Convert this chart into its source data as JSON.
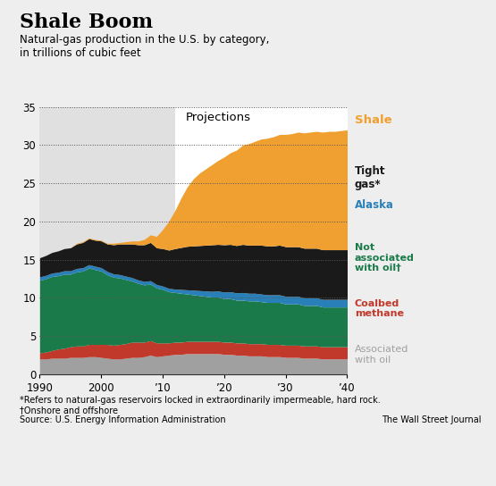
{
  "title": "Shale Boom",
  "subtitle": "Natural-gas production in the U.S. by category,\nin trillions of cubic feet",
  "footnote1": "*Refers to natural-gas reservoirs locked in extraordinarily impermeable, hard rock.",
  "footnote2": "†Onshore and offshore",
  "source": "Source: U.S. Energy Information Administration",
  "wsj": "The Wall Street Journal",
  "projection_start_year": 2012,
  "years": [
    1990,
    1991,
    1992,
    1993,
    1994,
    1995,
    1996,
    1997,
    1998,
    1999,
    2000,
    2001,
    2002,
    2003,
    2004,
    2005,
    2006,
    2007,
    2008,
    2009,
    2010,
    2011,
    2012,
    2013,
    2014,
    2015,
    2016,
    2017,
    2018,
    2019,
    2020,
    2021,
    2022,
    2023,
    2024,
    2025,
    2026,
    2027,
    2028,
    2029,
    2030,
    2031,
    2032,
    2033,
    2034,
    2035,
    2036,
    2037,
    2038,
    2039,
    2040
  ],
  "associated_with_oil": [
    2.0,
    2.0,
    2.1,
    2.1,
    2.1,
    2.2,
    2.2,
    2.2,
    2.3,
    2.3,
    2.2,
    2.1,
    2.0,
    2.0,
    2.1,
    2.2,
    2.2,
    2.3,
    2.5,
    2.3,
    2.4,
    2.5,
    2.6,
    2.6,
    2.7,
    2.7,
    2.7,
    2.7,
    2.7,
    2.7,
    2.6,
    2.6,
    2.5,
    2.5,
    2.4,
    2.4,
    2.4,
    2.3,
    2.3,
    2.3,
    2.2,
    2.2,
    2.2,
    2.1,
    2.1,
    2.1,
    2.0,
    2.0,
    2.0,
    2.0,
    2.0
  ],
  "coalbed_methane": [
    0.8,
    0.9,
    1.0,
    1.2,
    1.3,
    1.4,
    1.5,
    1.5,
    1.6,
    1.6,
    1.7,
    1.8,
    1.8,
    1.9,
    1.9,
    2.0,
    2.0,
    1.9,
    1.9,
    1.8,
    1.7,
    1.6,
    1.6,
    1.6,
    1.6,
    1.6,
    1.6,
    1.6,
    1.6,
    1.6,
    1.6,
    1.6,
    1.6,
    1.6,
    1.6,
    1.6,
    1.6,
    1.6,
    1.6,
    1.6,
    1.6,
    1.6,
    1.6,
    1.6,
    1.6,
    1.6,
    1.6,
    1.6,
    1.6,
    1.6,
    1.6
  ],
  "not_associated": [
    9.5,
    9.6,
    9.7,
    9.6,
    9.7,
    9.5,
    9.7,
    9.8,
    10.0,
    9.8,
    9.6,
    9.1,
    8.9,
    8.7,
    8.4,
    8.0,
    7.7,
    7.5,
    7.4,
    7.2,
    7.0,
    6.7,
    6.5,
    6.4,
    6.2,
    6.1,
    6.0,
    5.9,
    5.8,
    5.8,
    5.7,
    5.7,
    5.6,
    5.6,
    5.6,
    5.6,
    5.5,
    5.5,
    5.5,
    5.5,
    5.4,
    5.4,
    5.4,
    5.3,
    5.3,
    5.3,
    5.2,
    5.2,
    5.2,
    5.2,
    5.2
  ],
  "alaska": [
    0.45,
    0.45,
    0.45,
    0.45,
    0.45,
    0.45,
    0.45,
    0.45,
    0.45,
    0.45,
    0.45,
    0.45,
    0.45,
    0.45,
    0.45,
    0.45,
    0.45,
    0.45,
    0.45,
    0.45,
    0.45,
    0.45,
    0.45,
    0.5,
    0.55,
    0.6,
    0.65,
    0.7,
    0.75,
    0.8,
    0.85,
    0.9,
    0.95,
    1.0,
    1.0,
    1.0,
    1.0,
    1.0,
    1.0,
    1.0,
    1.0,
    1.0,
    1.0,
    1.0,
    1.0,
    1.0,
    1.0,
    1.0,
    1.0,
    1.0,
    1.0
  ],
  "tight_gas": [
    2.5,
    2.6,
    2.7,
    2.8,
    2.9,
    3.0,
    3.2,
    3.3,
    3.4,
    3.4,
    3.5,
    3.6,
    3.8,
    4.0,
    4.2,
    4.4,
    4.6,
    4.8,
    5.0,
    4.8,
    4.9,
    5.0,
    5.3,
    5.5,
    5.7,
    5.8,
    5.9,
    6.0,
    6.1,
    6.1,
    6.2,
    6.2,
    6.2,
    6.3,
    6.3,
    6.3,
    6.4,
    6.4,
    6.4,
    6.5,
    6.5,
    6.5,
    6.5,
    6.5,
    6.5,
    6.5,
    6.5,
    6.5,
    6.5,
    6.5,
    6.5
  ],
  "shale": [
    0.0,
    0.0,
    0.0,
    0.0,
    0.0,
    0.0,
    0.1,
    0.1,
    0.1,
    0.1,
    0.1,
    0.1,
    0.2,
    0.2,
    0.3,
    0.4,
    0.5,
    0.7,
    1.0,
    1.5,
    2.5,
    3.8,
    5.0,
    6.5,
    7.8,
    8.8,
    9.5,
    10.0,
    10.5,
    11.0,
    11.5,
    12.0,
    12.5,
    13.0,
    13.3,
    13.6,
    13.9,
    14.1,
    14.3,
    14.5,
    14.7,
    14.8,
    15.0,
    15.1,
    15.2,
    15.3,
    15.4,
    15.5,
    15.5,
    15.6,
    15.7
  ],
  "colors": {
    "associated_with_oil": "#a0a0a0",
    "coalbed_methane": "#c0392b",
    "not_associated": "#1a7a4a",
    "alaska": "#2980b9",
    "tight_gas": "#1a1a1a",
    "shale": "#f0a030"
  },
  "ylim": [
    0,
    35
  ],
  "xlim": [
    1990,
    2040
  ],
  "yticks": [
    0,
    5,
    10,
    15,
    20,
    25,
    30,
    35
  ],
  "xtick_labels": [
    "1990",
    "2000",
    "’10",
    "’20",
    "’30",
    "’40"
  ],
  "xtick_positions": [
    1990,
    2000,
    2010,
    2020,
    2030,
    2040
  ],
  "background_color": "#eeeeee",
  "plot_bg_history": "#e0e0e0",
  "plot_bg_projection": "#ffffff"
}
